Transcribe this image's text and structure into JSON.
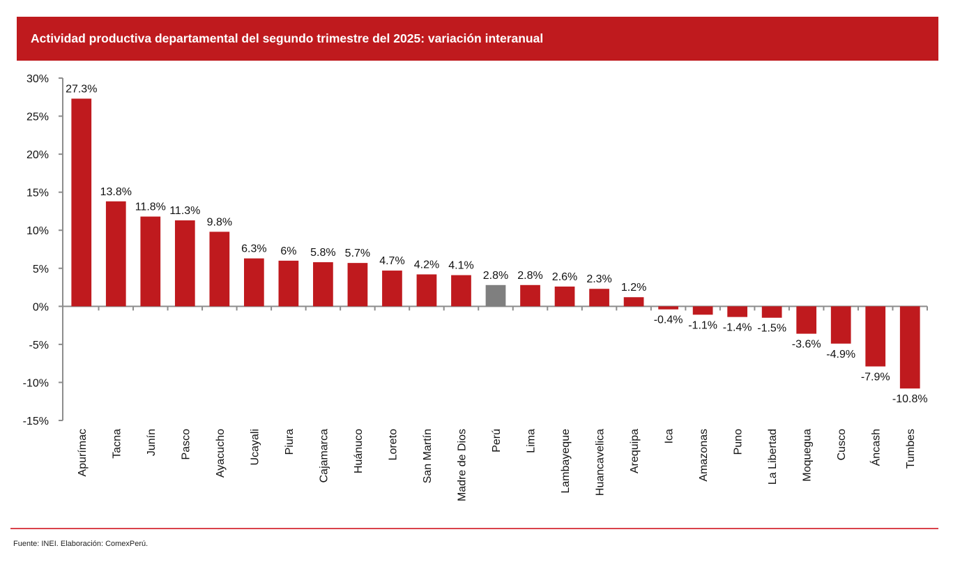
{
  "header": {
    "title": "Actividad productiva departamental del segundo trimestre del 2025: variación interanual"
  },
  "footer": {
    "source": "Fuente: INEI. Elaboración: ComexPerú."
  },
  "colors": {
    "header_bg": "#bf1a1e",
    "bar_default": "#bf1a1e",
    "bar_highlight": "#7f7f7f",
    "axis": "#8c8c8c",
    "footer_line": "#d9424a"
  },
  "chart_data": {
    "type": "bar",
    "title": "Actividad productiva departamental del segundo trimestre del 2025: variación interanual",
    "xlabel": "",
    "ylabel": "",
    "ylim": [
      -15,
      30
    ],
    "yticks": [
      -15,
      -10,
      -5,
      0,
      5,
      10,
      15,
      20,
      25,
      30
    ],
    "ytick_labels": [
      "-15%",
      "-10%",
      "-5%",
      "0%",
      "5%",
      "10%",
      "15%",
      "20%",
      "25%",
      "30%"
    ],
    "grid": false,
    "legend": "none",
    "highlight_category": "Perú",
    "categories": [
      "Apurímac",
      "Tacna",
      "Junín",
      "Pasco",
      "Ayacucho",
      "Ucayali",
      "Piura",
      "Cajamarca",
      "Huánuco",
      "Loreto",
      "San Martín",
      "Madre de Dios",
      "Perú",
      "Lima",
      "Lambayeque",
      "Huancavelica",
      "Arequipa",
      "Ica",
      "Amazonas",
      "Puno",
      "La Libertad",
      "Moquegua",
      "Cusco",
      "Áncash",
      "Tumbes"
    ],
    "values": [
      27.3,
      13.8,
      11.8,
      11.3,
      9.8,
      6.3,
      6.0,
      5.8,
      5.7,
      4.7,
      4.2,
      4.1,
      2.8,
      2.8,
      2.6,
      2.3,
      1.2,
      -0.4,
      -1.1,
      -1.4,
      -1.5,
      -3.6,
      -4.9,
      -7.9,
      -10.8
    ],
    "data_labels": [
      "27.3%",
      "13.8%",
      "11.8%",
      "11.3%",
      "9.8%",
      "6.3%",
      "6%",
      "5.8%",
      "5.7%",
      "4.7%",
      "4.2%",
      "4.1%",
      "2.8%",
      "2.8%",
      "2.6%",
      "2.3%",
      "1.2%",
      "-0.4%",
      "-1.1%",
      "-1.4%",
      "-1.5%",
      "-3.6%",
      "-4.9%",
      "-7.9%",
      "-10.8%"
    ],
    "source": "Fuente: INEI. Elaboración: ComexPerú."
  }
}
